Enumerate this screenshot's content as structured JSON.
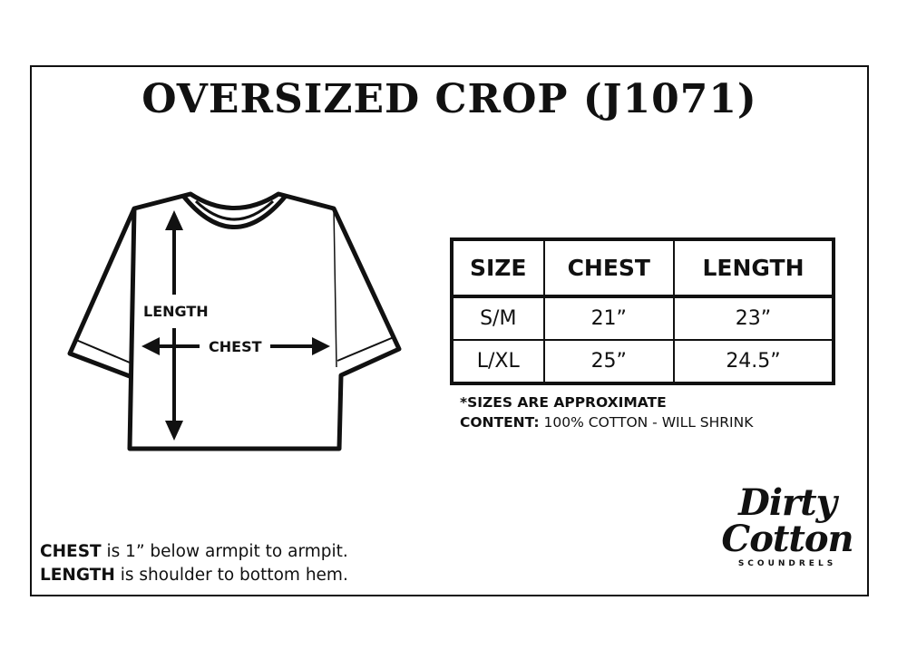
{
  "title": "OVERSIZED CROP (J1071)",
  "diagram": {
    "length_label": "LENGTH",
    "chest_label": "CHEST"
  },
  "table": {
    "headers": [
      "SIZE",
      "CHEST",
      "LENGTH"
    ],
    "rows": [
      [
        "S/M",
        "21”",
        "23”"
      ],
      [
        "L/XL",
        "25”",
        "24.5”"
      ]
    ]
  },
  "notes": {
    "approx": "*SIZES ARE APPROXIMATE",
    "content_label": "CONTENT:",
    "content_value": " 100% COTTON - WILL SHRINK"
  },
  "footer": {
    "chest_term": "CHEST",
    "chest_desc": " is 1” below armpit to armpit.",
    "length_term": "LENGTH",
    "length_desc": " is shoulder to bottom hem."
  },
  "logo": {
    "line1": "Dirty",
    "line2": "Cotton",
    "line3": "SCOUNDRELS"
  }
}
